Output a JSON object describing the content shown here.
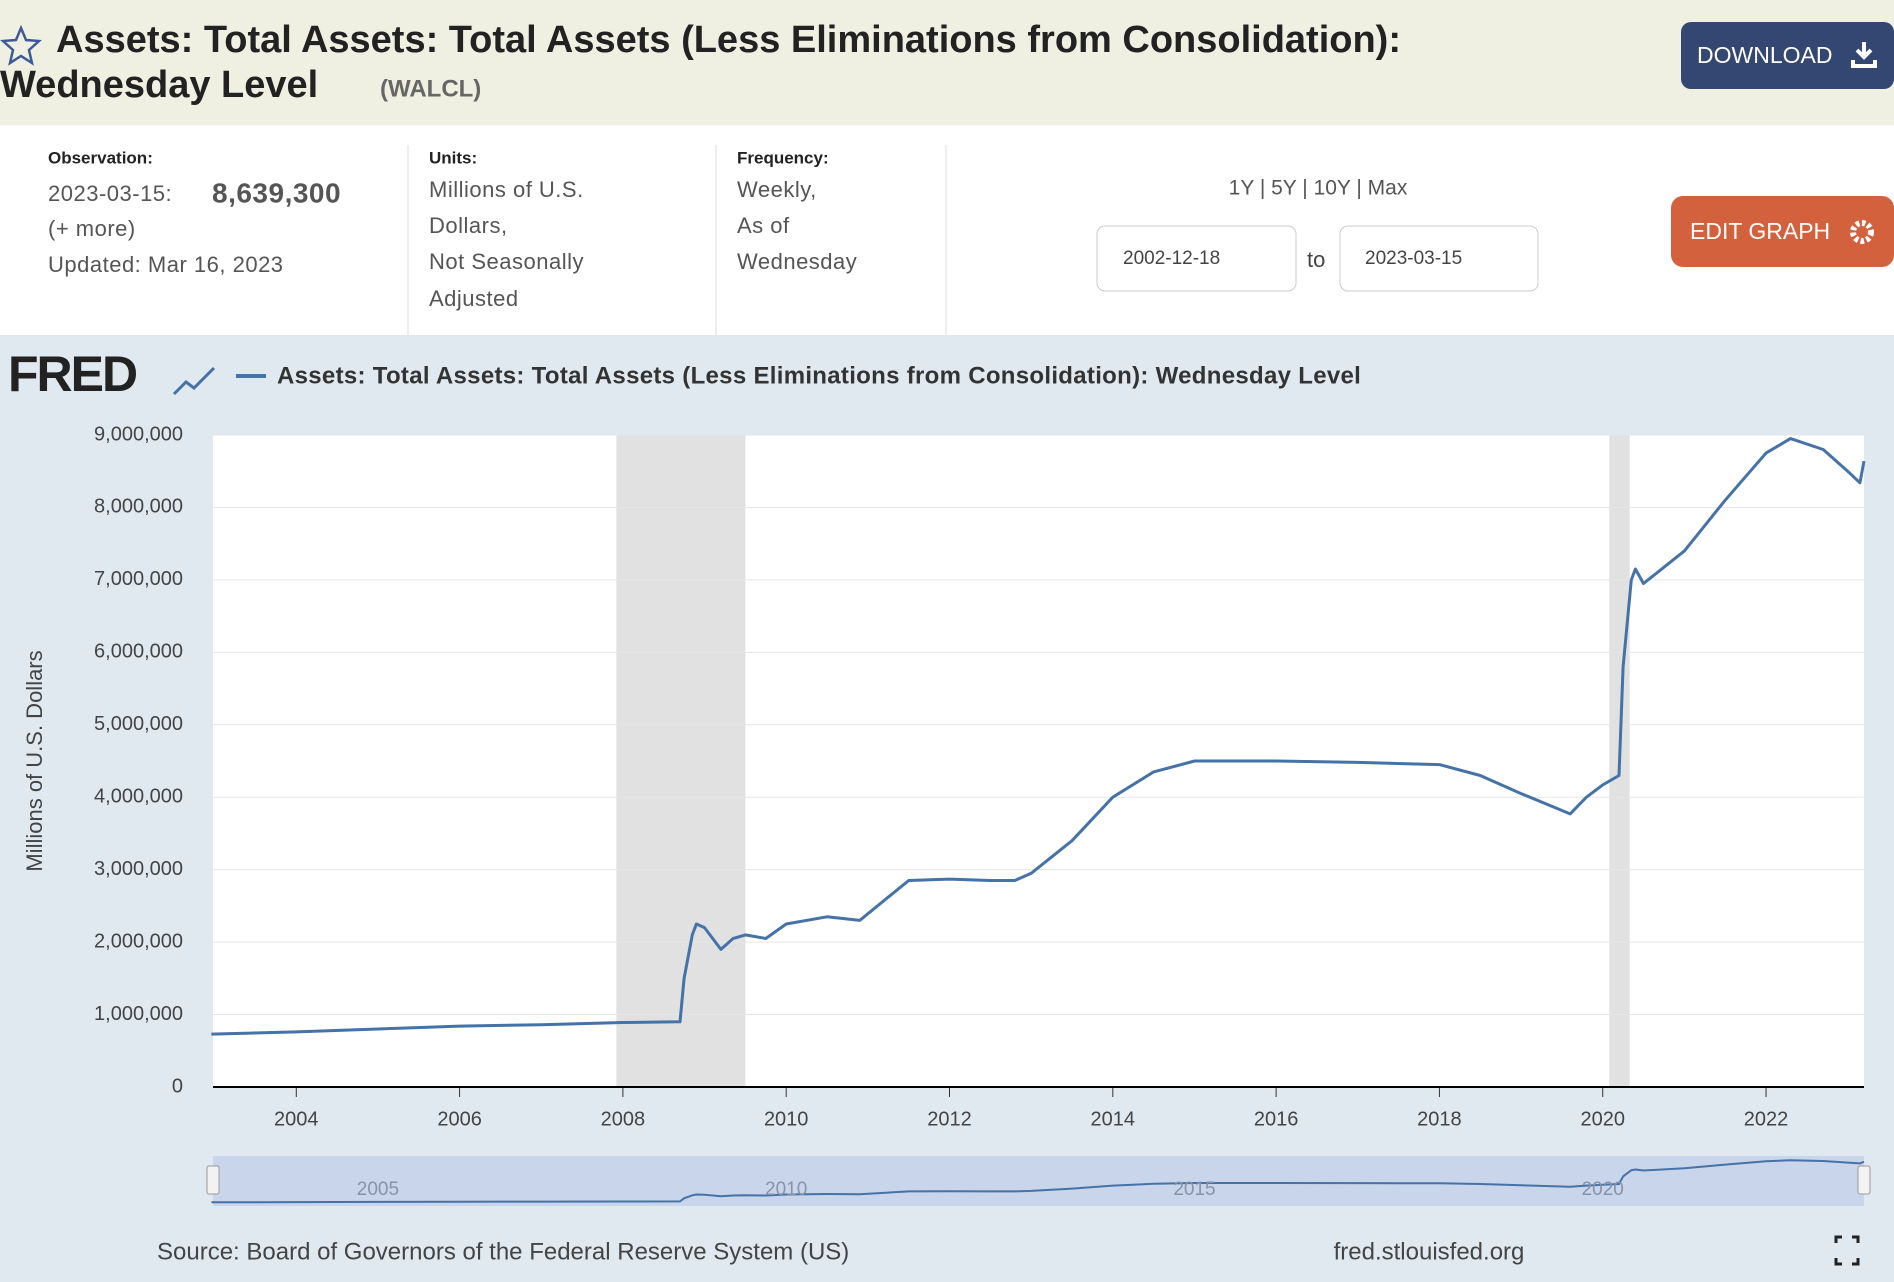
{
  "header": {
    "title_line1": "Assets: Total Assets: Total Assets (Less Eliminations from Consolidation):",
    "title_line2": "Wednesday Level",
    "series_id": "(WALCL)",
    "download": "DOWNLOAD"
  },
  "info": {
    "observation_label": "Observation:",
    "observation_date": "2023-03-15:",
    "observation_value": "8,639,300",
    "more": "(+ more)",
    "updated": "Updated: Mar 16, 2023",
    "units_label": "Units:",
    "units_lines": [
      "Millions of U.S.",
      "Dollars,",
      "Not Seasonally",
      "Adjusted"
    ],
    "frequency_label": "Frequency:",
    "frequency_lines": [
      "Weekly,",
      "As of",
      "Wednesday"
    ],
    "ranges": "1Y | 5Y | 10Y | Max",
    "start_date": "2002-12-18",
    "to": "to",
    "end_date": "2023-03-15",
    "edit": "EDIT GRAPH"
  },
  "chart_data": {
    "type": "line",
    "logo": "FRED",
    "y_label": "Millions of U.S. Dollars",
    "series": [
      {
        "name": "Assets: Total Assets: Total Assets (Less Eliminations from Consolidation): Wednesday Level",
        "color": "#4572a7",
        "x": [
          2002.96,
          2004,
          2005,
          2006,
          2007,
          2008,
          2008.7,
          2008.75,
          2008.85,
          2008.9,
          2009.0,
          2009.2,
          2009.35,
          2009.5,
          2009.75,
          2010.0,
          2010.5,
          2010.9,
          2011.5,
          2012.0,
          2012.5,
          2012.8,
          2013.0,
          2013.5,
          2014.0,
          2014.5,
          2015.0,
          2016.0,
          2017.0,
          2018.0,
          2018.5,
          2019.0,
          2019.6,
          2019.8,
          2020.0,
          2020.2,
          2020.25,
          2020.35,
          2020.4,
          2020.5,
          2021.0,
          2021.5,
          2022.0,
          2022.3,
          2022.7,
          2023.0,
          2023.15,
          2023.2
        ],
        "values": [
          730000,
          760000,
          800000,
          840000,
          860000,
          890000,
          900000,
          1500000,
          2100000,
          2250000,
          2200000,
          1900000,
          2050000,
          2100000,
          2050000,
          2250000,
          2350000,
          2300000,
          2850000,
          2870000,
          2850000,
          2850000,
          2950000,
          3400000,
          4000000,
          4350000,
          4500000,
          4500000,
          4480000,
          4450000,
          4300000,
          4050000,
          3770000,
          4000000,
          4170000,
          4300000,
          5800000,
          7000000,
          7150000,
          6950000,
          7400000,
          8100000,
          8750000,
          8950000,
          8800000,
          8500000,
          8340000,
          8639300
        ]
      }
    ],
    "recessions": [
      [
        2007.92,
        2009.5
      ],
      [
        2020.08,
        2020.33
      ]
    ],
    "xlim": [
      2002.98,
      2023.2
    ],
    "xticks": [
      2004,
      2006,
      2008,
      2010,
      2012,
      2014,
      2016,
      2018,
      2020,
      2022
    ],
    "ylim": [
      0,
      9000000
    ],
    "yticks": [
      0,
      {
        "value": 1000000,
        "label": "1,000,000"
      },
      {
        "value": 2000000,
        "label": "2,000,000"
      },
      {
        "value": 3000000,
        "label": "3,000,000"
      },
      {
        "value": 4000000,
        "label": "4,000,000"
      },
      {
        "value": 5000000,
        "label": "5,000,000"
      },
      {
        "value": 6000000,
        "label": "6,000,000"
      },
      {
        "value": 7000000,
        "label": "7,000,000"
      },
      {
        "value": 8000000,
        "label": "8,000,000"
      },
      {
        "value": 9000000,
        "label": "9,000,000"
      }
    ],
    "grid": true,
    "navigator_ticks": [
      2005,
      2010,
      2015,
      2020
    ],
    "source": "Source: Board of Governors of the Federal Reserve System (US)",
    "url": "fred.stlouisfed.org"
  }
}
